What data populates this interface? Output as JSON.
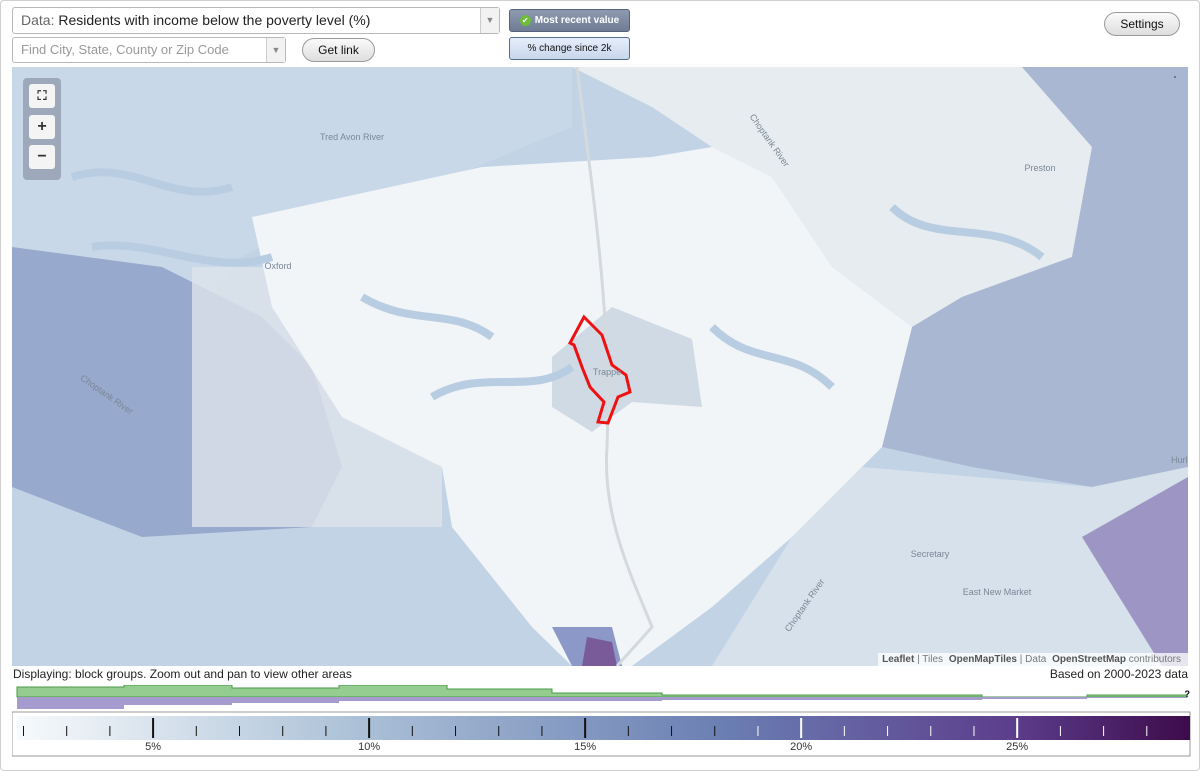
{
  "toolbar": {
    "data_label": "Data:",
    "data_value": "Residents with income below the poverty level (%)",
    "search_placeholder": "Find City, State, County or Zip Code",
    "get_link": "Get link",
    "most_recent": "Most recent value",
    "percent_change": "% change since 2k",
    "settings": "Settings"
  },
  "map": {
    "labels": [
      "Tred Avon River",
      "Oxford",
      "Trappe",
      "Preston",
      "Secretary",
      "East New Market",
      "Hurloc",
      "Choptank River"
    ],
    "attribution": [
      "Leaflet",
      "| Tiles",
      "OpenMapTiles",
      "| Data",
      "OpenStreetMap",
      "contributors"
    ]
  },
  "status": {
    "displaying": "Displaying: block groups. Zoom out and pan to view other areas",
    "data_range": "Based on 2000-2023 data",
    "help": "?"
  },
  "legend": {
    "range": [
      1.85,
      29
    ],
    "ticks": [
      {
        "value": 5,
        "label": "5%"
      },
      {
        "value": 10,
        "label": "10%"
      },
      {
        "value": 15,
        "label": "15%"
      },
      {
        "value": 20,
        "label": "20%"
      },
      {
        "value": 25,
        "label": "25%"
      }
    ],
    "minor_ticks": [
      2,
      3,
      4,
      6,
      7,
      8,
      9,
      11,
      12,
      13,
      14,
      16,
      17,
      18,
      19,
      21,
      22,
      23,
      24,
      26,
      27,
      28
    ]
  }
}
